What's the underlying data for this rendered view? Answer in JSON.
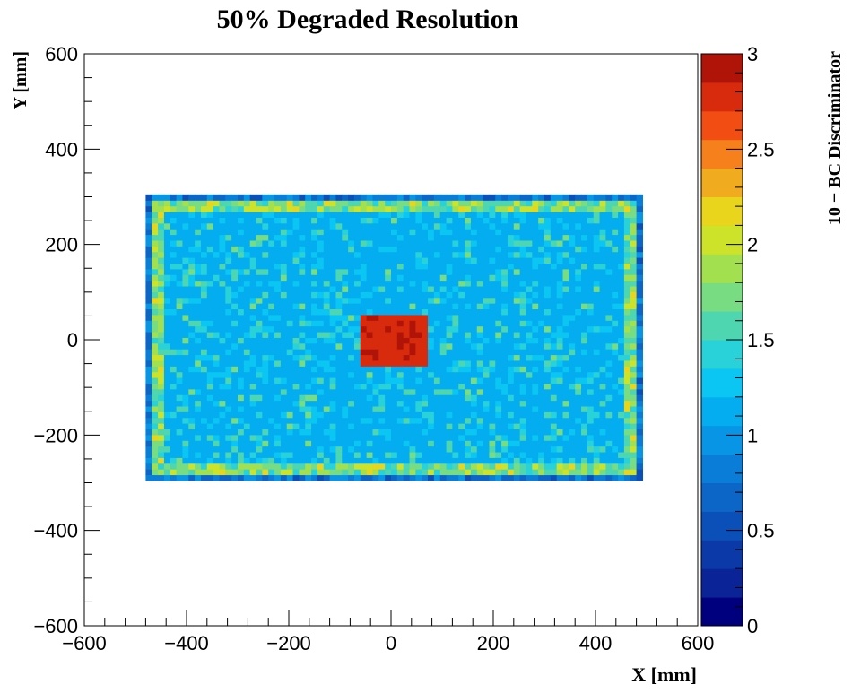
{
  "chart_data": {
    "type": "heatmap",
    "title": "50% Degraded Resolution",
    "xlabel": "X [mm]",
    "ylabel": "Y [mm]",
    "zlabel": "10 − BC Discriminator",
    "xlim": [
      -600,
      600
    ],
    "ylim": [
      -600,
      600
    ],
    "zlim": [
      0,
      3
    ],
    "x_ticks": [
      -600,
      -400,
      -200,
      0,
      200,
      400,
      600
    ],
    "y_ticks": [
      -600,
      -400,
      -200,
      0,
      200,
      400,
      600
    ],
    "z_ticks": [
      0,
      0.5,
      1,
      1.5,
      2,
      2.5,
      3
    ],
    "x_tick_labels": [
      "−600",
      "−400",
      "−200",
      "0",
      "200",
      "400",
      "600"
    ],
    "y_tick_labels": [
      "−600",
      "−400",
      "−200",
      "0",
      "200",
      "400",
      "600"
    ],
    "z_tick_labels": [
      "0",
      "0.5",
      "1",
      "1.5",
      "2",
      "2.5",
      "3"
    ],
    "color_levels": 20,
    "regions": [
      {
        "name": "detector-plane",
        "x": [
          -480,
          490
        ],
        "y": [
          -295,
          300
        ],
        "value": 1.1
      },
      {
        "name": "edge-band",
        "width": 18,
        "value": 1.7
      },
      {
        "name": "central-hotspot",
        "x": [
          -55,
          75
        ],
        "y": [
          -60,
          50
        ],
        "value": 2.9
      }
    ],
    "colors": [
      "#00007f",
      "#0a2396",
      "#0b3aa8",
      "#0b50b8",
      "#0c66c8",
      "#0a7dd8",
      "#0895e6",
      "#04acf0",
      "#0bc6f2",
      "#28d2d8",
      "#4dd6b0",
      "#78dc82",
      "#a3e050",
      "#cde32a",
      "#e8d51c",
      "#f0ab1e",
      "#f5801c",
      "#f24e14",
      "#d82a0c",
      "#b01408"
    ]
  }
}
